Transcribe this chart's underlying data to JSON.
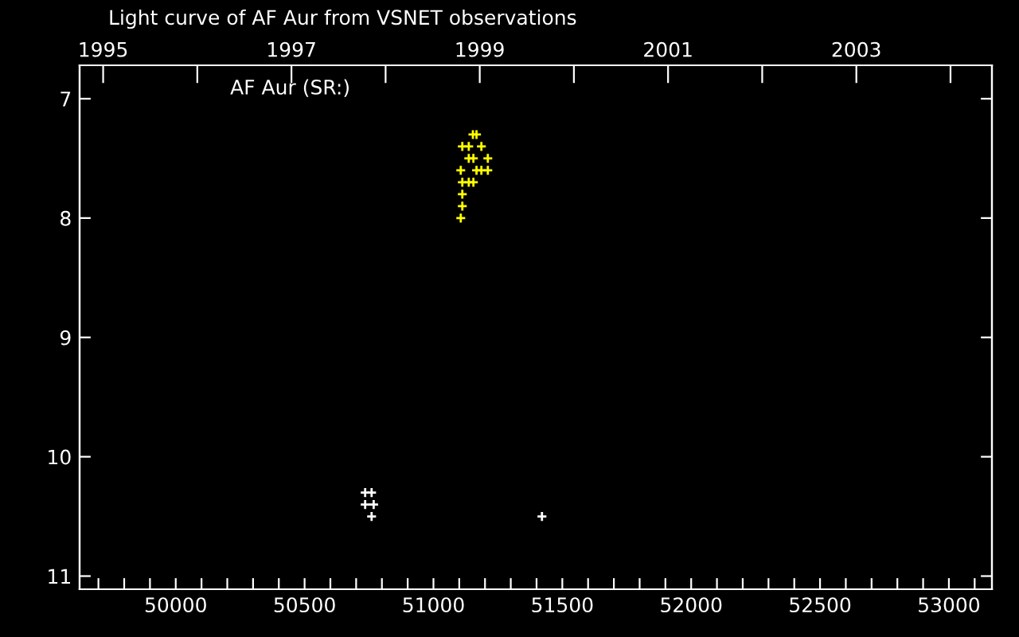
{
  "chart_data": {
    "type": "scatter",
    "title": "Light curve of AF Aur from VSNET observations",
    "annotations": [
      "AF Aur (SR:)"
    ],
    "series": [
      {
        "color": "#ffff00",
        "x": [
          51153,
          51167,
          51112,
          51137,
          51186,
          51137,
          51155,
          51211,
          51106,
          51167,
          51186,
          51211,
          51112,
          51137,
          51155,
          51112,
          51112,
          51106
        ],
        "values": [
          7.3,
          7.3,
          7.4,
          7.4,
          7.4,
          7.5,
          7.5,
          7.5,
          7.6,
          7.6,
          7.6,
          7.6,
          7.7,
          7.7,
          7.7,
          7.8,
          7.9,
          8.0
        ]
      },
      {
        "color": "#ffffff",
        "x": [
          50735,
          50760,
          50735,
          50768,
          50760,
          51421
        ],
        "values": [
          10.3,
          10.3,
          10.4,
          10.4,
          10.5,
          10.5
        ]
      }
    ],
    "marker": "cross",
    "grid": false,
    "xlim": [
      49627,
      53167
    ],
    "ylim": [
      11.11,
      6.72
    ],
    "xticks": [
      {
        "value": 49700,
        "label": null
      },
      {
        "value": 49800,
        "label": null
      },
      {
        "value": 49900,
        "label": null
      },
      50000,
      {
        "value": 50100,
        "label": null
      },
      {
        "value": 50200,
        "label": null
      },
      {
        "value": 50300,
        "label": null
      },
      {
        "value": 50400,
        "label": null
      },
      50500,
      {
        "value": 50600,
        "label": null
      },
      {
        "value": 50700,
        "label": null
      },
      {
        "value": 50800,
        "label": null
      },
      {
        "value": 50900,
        "label": null
      },
      51000,
      {
        "value": 51100,
        "label": null
      },
      {
        "value": 51200,
        "label": null
      },
      {
        "value": 51300,
        "label": null
      },
      {
        "value": 51400,
        "label": null
      },
      51500,
      {
        "value": 51600,
        "label": null
      },
      {
        "value": 51700,
        "label": null
      },
      {
        "value": 51800,
        "label": null
      },
      {
        "value": 51900,
        "label": null
      },
      52000,
      {
        "value": 52100,
        "label": null
      },
      {
        "value": 52200,
        "label": null
      },
      {
        "value": 52300,
        "label": null
      },
      {
        "value": 52400,
        "label": null
      },
      52500,
      {
        "value": 52600,
        "label": null
      },
      {
        "value": 52700,
        "label": null
      },
      {
        "value": 52800,
        "label": null
      },
      {
        "value": 52900,
        "label": null
      },
      53000,
      {
        "value": 53100,
        "label": null
      }
    ],
    "yticks": [
      7,
      8,
      9,
      10,
      11
    ],
    "x2lim": [
      1994.75,
      2004.44
    ],
    "x2ticks": [
      1995,
      {
        "value": 1996,
        "label": null
      },
      1997,
      {
        "value": 1998,
        "label": null
      },
      1999,
      {
        "value": 2000,
        "label": null
      },
      2001,
      {
        "value": 2002,
        "label": null
      },
      2003,
      {
        "value": 2004,
        "label": null
      }
    ]
  }
}
